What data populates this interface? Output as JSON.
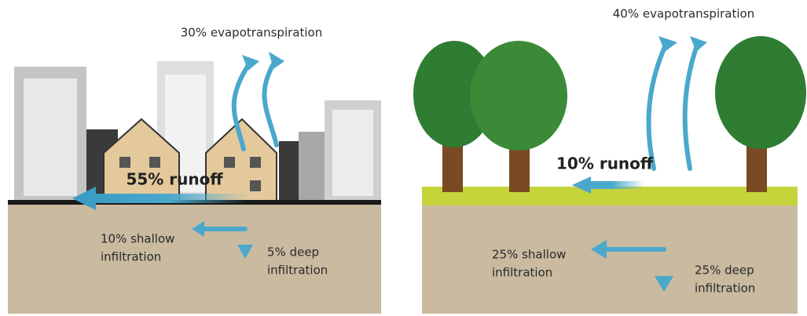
{
  "panels": [
    {
      "evapotranspiration": "30% evapotranspiration",
      "runoff": "55% runoff",
      "shallow_infiltration": [
        "10% shallow",
        "infiltration"
      ],
      "deep_infiltration": [
        "5% deep",
        "infiltration"
      ]
    },
    {
      "evapotranspiration": "40% evapotranspiration",
      "runoff": "10% runoff",
      "shallow_infiltration": [
        "25% shallow",
        "infiltration"
      ],
      "deep_infiltration": [
        "25% deep",
        "infiltration"
      ]
    }
  ]
}
